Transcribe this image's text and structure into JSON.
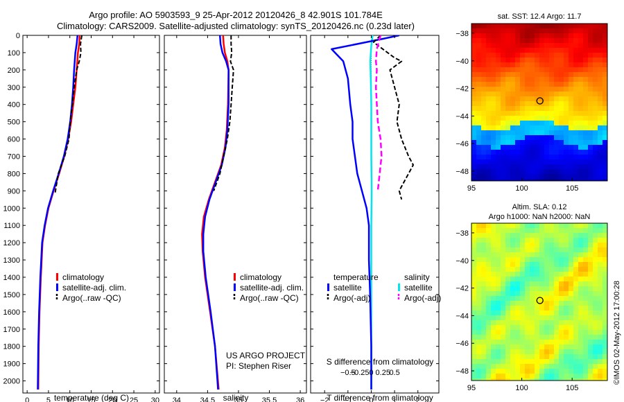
{
  "title": {
    "line1": "Argo profile: AO 5903593_9 25-Apr-2012 20120426_8 42.901S 101.784E",
    "line2": "Climatology: CARS2009. Satellite-adjusted climatology: synTS_20120426.nc (0.23d later)"
  },
  "watermark": "©IMOS 02-May-2012 17:00:28",
  "project": {
    "line1": "US ARGO PROJECT",
    "line2": "PI: Stephen Riser"
  },
  "colors": {
    "climatology": "#ff0000",
    "satellite": "#0000ff",
    "argo": "#000000",
    "sal_satellite": "#00e5ee",
    "sal_argo": "#ff00ff"
  },
  "chart_data": [
    {
      "type": "line",
      "name": "temperature",
      "xlabel": "temperature (deg C)",
      "xlim": [
        -1,
        31
      ],
      "xticks": [
        0,
        5,
        10,
        15,
        20,
        25,
        30
      ],
      "ylim": [
        0,
        2070
      ],
      "yticks": [
        0,
        100,
        200,
        300,
        400,
        500,
        600,
        700,
        800,
        900,
        1000,
        1100,
        1200,
        1300,
        1400,
        1500,
        1600,
        1700,
        1800,
        1900,
        2000
      ],
      "legend": [
        "climatology",
        "satellite-adj. clim.",
        "Argo(..raw -QC)"
      ],
      "series": [
        {
          "name": "climatology",
          "x": [
            12.3,
            12.2,
            11.9,
            11.6,
            11.3,
            10.8,
            10.3,
            9.6,
            8.7,
            7.5,
            6.2,
            5.0,
            4.2,
            3.6,
            3.2,
            2.9,
            2.7,
            2.6
          ],
          "y": [
            0,
            50,
            100,
            200,
            300,
            400,
            500,
            600,
            700,
            800,
            900,
            1000,
            1100,
            1200,
            1400,
            1600,
            1800,
            2050
          ]
        },
        {
          "name": "satellite-adj. clim.",
          "x": [
            11.8,
            11.6,
            11.3,
            11.0,
            10.8,
            10.5,
            10.1,
            9.5,
            8.6,
            7.4,
            6.1,
            4.9,
            4.1,
            3.5,
            3.1,
            2.8,
            2.6,
            2.5
          ],
          "y": [
            0,
            50,
            100,
            200,
            300,
            400,
            500,
            600,
            700,
            800,
            900,
            1000,
            1100,
            1200,
            1400,
            1600,
            1800,
            2050
          ]
        },
        {
          "name": "Argo(..raw -QC)",
          "x": [
            12.8,
            12.5,
            12.6,
            12.2,
            11.6,
            11.0,
            10.6,
            10.1,
            9.8,
            8.8,
            7.3,
            6.5
          ],
          "y": [
            0,
            50,
            100,
            150,
            200,
            300,
            400,
            500,
            600,
            700,
            800,
            920
          ]
        }
      ]
    },
    {
      "type": "line",
      "name": "salinity",
      "xlabel": "salinity",
      "xlim": [
        33.8,
        36.1
      ],
      "xticks": [
        34,
        34.5,
        35,
        35.5,
        36
      ],
      "ylim": [
        0,
        2070
      ],
      "legend": [
        "climatology",
        "satellite-adj. clim.",
        "Argo(..raw -QC)"
      ],
      "series": [
        {
          "name": "climatology",
          "x": [
            34.75,
            34.76,
            34.78,
            34.82,
            34.84,
            34.83,
            34.81,
            34.78,
            34.72,
            34.62,
            34.52,
            34.44,
            34.41,
            34.42,
            34.46,
            34.54,
            34.62,
            34.68
          ],
          "y": [
            0,
            50,
            100,
            150,
            200,
            400,
            550,
            650,
            750,
            850,
            950,
            1050,
            1150,
            1250,
            1400,
            1600,
            1800,
            2050
          ]
        },
        {
          "name": "satellite-adj. clim.",
          "x": [
            34.7,
            34.71,
            34.74,
            34.8,
            34.84,
            34.84,
            34.82,
            34.79,
            34.73,
            34.63,
            34.53,
            34.46,
            34.43,
            34.43,
            34.47,
            34.55,
            34.62,
            34.67
          ],
          "y": [
            0,
            50,
            100,
            150,
            200,
            400,
            550,
            650,
            750,
            850,
            950,
            1050,
            1150,
            1250,
            1400,
            1600,
            1800,
            2050
          ]
        },
        {
          "name": "Argo(..raw -QC)",
          "x": [
            34.88,
            34.88,
            34.89,
            34.87,
            34.92,
            34.9,
            34.88,
            34.86,
            34.82,
            34.76,
            34.7,
            34.6
          ],
          "y": [
            0,
            50,
            100,
            150,
            200,
            300,
            400,
            500,
            600,
            700,
            800,
            900
          ]
        }
      ]
    },
    {
      "type": "line",
      "name": "difference",
      "xlabel": "T difference from climatology",
      "xlabel_top": "S difference from climatology",
      "xlim": [
        -2.6,
        2.9
      ],
      "xticks": [
        -2,
        -1,
        0,
        1,
        2
      ],
      "xticks_top": [
        -0.5,
        -0.25,
        0,
        0.25,
        0.5
      ],
      "ylim": [
        0,
        2070
      ],
      "legend_headers": [
        "temperature",
        "salinity"
      ],
      "legend": [
        "satellite",
        "Argo(-adj)",
        "satellite",
        "Argo(-adj)"
      ],
      "series": [
        {
          "name": "temperature satellite",
          "x": [
            1.2,
            0.5,
            -1.7,
            -1.2,
            -1.0,
            -0.9,
            -0.8,
            -0.8,
            -0.7,
            -0.6,
            -0.4,
            -0.2,
            -0.1,
            -0.1,
            -0.05,
            0,
            0
          ],
          "y": [
            0,
            20,
            80,
            150,
            250,
            400,
            500,
            600,
            700,
            800,
            900,
            1000,
            1100,
            1300,
            1500,
            1800,
            2050
          ]
        },
        {
          "name": "temperature Argo(-adj)",
          "x": [
            0.4,
            0.1,
            0.7,
            1.0,
            1.3,
            0.8,
            1.0,
            1.2,
            1.1,
            1.3,
            1.6,
            1.8,
            1.6,
            1.4,
            1.2,
            1.3
          ],
          "y": [
            0,
            40,
            100,
            130,
            150,
            200,
            300,
            400,
            500,
            600,
            700,
            750,
            800,
            850,
            900,
            950
          ]
        },
        {
          "name": "salinity satellite",
          "x": [
            0.03,
            0,
            -0.02,
            -0.01,
            0.0,
            0.0,
            0.0,
            0.01,
            0.0,
            0.0,
            0.0,
            0.0,
            0.0
          ],
          "y": [
            0,
            60,
            150,
            250,
            400,
            550,
            700,
            900,
            1100,
            1300,
            1500,
            1800,
            2050
          ]
        },
        {
          "name": "salinity Argo(-adj)",
          "x": [
            0.2,
            0.12,
            0.1,
            0.12,
            0.1,
            0.12,
            0.14,
            0.2,
            0.22,
            0.18,
            0.14
          ],
          "y": [
            0,
            80,
            150,
            200,
            300,
            400,
            500,
            600,
            700,
            800,
            900
          ]
        }
      ]
    },
    {
      "type": "heatmap",
      "name": "sat-sst-map",
      "title": "sat. SST: 12.4 Argo: 11.7",
      "xticks": [
        95,
        100,
        105
      ],
      "yticks": [
        -38,
        -40,
        -42,
        -44,
        -46,
        -48
      ],
      "xlim": [
        95,
        108.5
      ],
      "ylim": [
        -48.7,
        -37.3
      ],
      "marker": {
        "lon": 101.8,
        "lat": -42.9
      }
    },
    {
      "type": "heatmap",
      "name": "altim-sla-map",
      "title_line1": "Altim. SLA: 0.12",
      "title_line2": "Argo h1000: NaN h2000: NaN",
      "xticks": [
        95,
        100,
        105
      ],
      "yticks": [
        -38,
        -40,
        -42,
        -44,
        -46,
        -48
      ],
      "xlim": [
        95,
        108.5
      ],
      "ylim": [
        -48.7,
        -37.3
      ],
      "marker": {
        "lon": 101.8,
        "lat": -42.9
      }
    }
  ]
}
